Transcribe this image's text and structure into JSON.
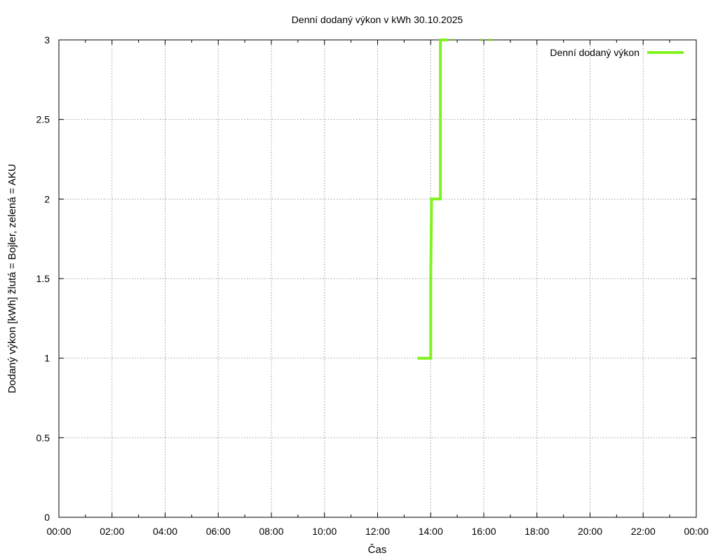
{
  "chart_data": {
    "type": "line",
    "title": "Denní dodaný výkon v kWh 30.10.2025",
    "xlabel": "Čas",
    "ylabel": "Dodaný výkon [kWh]  žlutá = Bojler, zelená = AKU",
    "xlim_hours": [
      0,
      24
    ],
    "ylim": [
      0,
      3
    ],
    "x_ticks": [
      "00:00",
      "02:00",
      "04:00",
      "06:00",
      "08:00",
      "10:00",
      "12:00",
      "14:00",
      "16:00",
      "18:00",
      "20:00",
      "22:00",
      "00:00"
    ],
    "y_ticks": [
      "0",
      "0.5",
      "1",
      "1.5",
      "2",
      "2.5",
      "3"
    ],
    "grid": true,
    "legend_position": "top-right",
    "series": [
      {
        "name": "Denní dodaný výkon",
        "color": "#80f31f",
        "step": true,
        "x": [
          "13:30",
          "13:35",
          "14:00",
          "14:02",
          "14:22",
          "14:28",
          "14:51",
          "15:55",
          "16:15"
        ],
        "y": [
          1,
          1,
          1,
          2,
          2,
          3,
          3,
          3,
          3
        ],
        "segments": [
          {
            "x": [
              "13:30",
              "13:35"
            ],
            "y": [
              1,
              1
            ]
          },
          {
            "x": [
              "13:35",
              "14:00",
              "14:00",
              "14:02",
              "14:22",
              "14:22",
              "14:38"
            ],
            "y": [
              1,
              1,
              1.5,
              2,
              2,
              3,
              3
            ]
          },
          {
            "x": [
              "14:48",
              "14:51"
            ],
            "y": [
              3,
              3
            ]
          },
          {
            "x": [
              "15:53",
              "15:57"
            ],
            "y": [
              3,
              3
            ]
          },
          {
            "x": [
              "16:13",
              "16:17"
            ],
            "y": [
              3,
              3
            ]
          }
        ]
      }
    ]
  }
}
